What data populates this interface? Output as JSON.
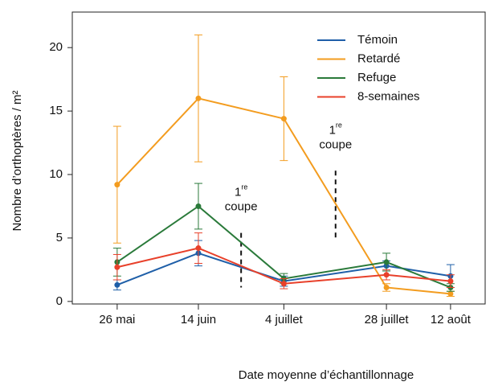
{
  "chart_data": {
    "type": "line",
    "x_label": "Date moyenne d’échantillonnage",
    "y_label": "Nombre d’orthoptères / m²",
    "x": [
      146,
      165,
      185,
      209,
      224
    ],
    "xlim": [
      135.5,
      232.1
    ],
    "xticks": [
      {
        "value": 146,
        "label": "26 mai"
      },
      {
        "value": 165,
        "label": "14 juin"
      },
      {
        "value": 185,
        "label": "4 juillet"
      },
      {
        "value": 209,
        "label": "28 juillet"
      },
      {
        "value": 224,
        "label": "12 août"
      }
    ],
    "ylim": [
      -0.2,
      22.8
    ],
    "yticks": [
      0,
      5,
      10,
      15,
      20
    ],
    "legend": "top-right",
    "series": [
      {
        "name": "Témoin",
        "color": "#1f5fa8",
        "values": [
          1.3,
          3.8,
          1.6,
          2.8,
          2.0
        ],
        "errors": [
          0.4,
          1.0,
          0.4,
          0.4,
          0.9
        ]
      },
      {
        "name": "Retardé",
        "color": "#f39c1f",
        "values": [
          9.2,
          16.0,
          14.4,
          1.1,
          0.6
        ],
        "errors": [
          4.6,
          5.0,
          3.3,
          0.3,
          0.2
        ]
      },
      {
        "name": "Refuge",
        "color": "#2a7a3a",
        "values": [
          3.1,
          7.5,
          1.8,
          3.1,
          1.1
        ],
        "errors": [
          1.1,
          1.8,
          0.4,
          0.7,
          0.3
        ]
      },
      {
        "name": "8-semaines",
        "color": "#e8402a",
        "values": [
          2.7,
          4.2,
          1.4,
          2.1,
          1.6
        ],
        "errors": [
          1.0,
          1.2,
          0.4,
          0.4,
          0.5
        ]
      }
    ],
    "annotations": [
      {
        "text": "1",
        "sup": "re",
        "text2": "coupe",
        "x": 175,
        "y": [
          5.4,
          1.1
        ]
      },
      {
        "text": "1",
        "sup": "re",
        "text2": "coupe",
        "x": 197.1,
        "y": [
          10.3,
          4.9
        ]
      }
    ]
  }
}
